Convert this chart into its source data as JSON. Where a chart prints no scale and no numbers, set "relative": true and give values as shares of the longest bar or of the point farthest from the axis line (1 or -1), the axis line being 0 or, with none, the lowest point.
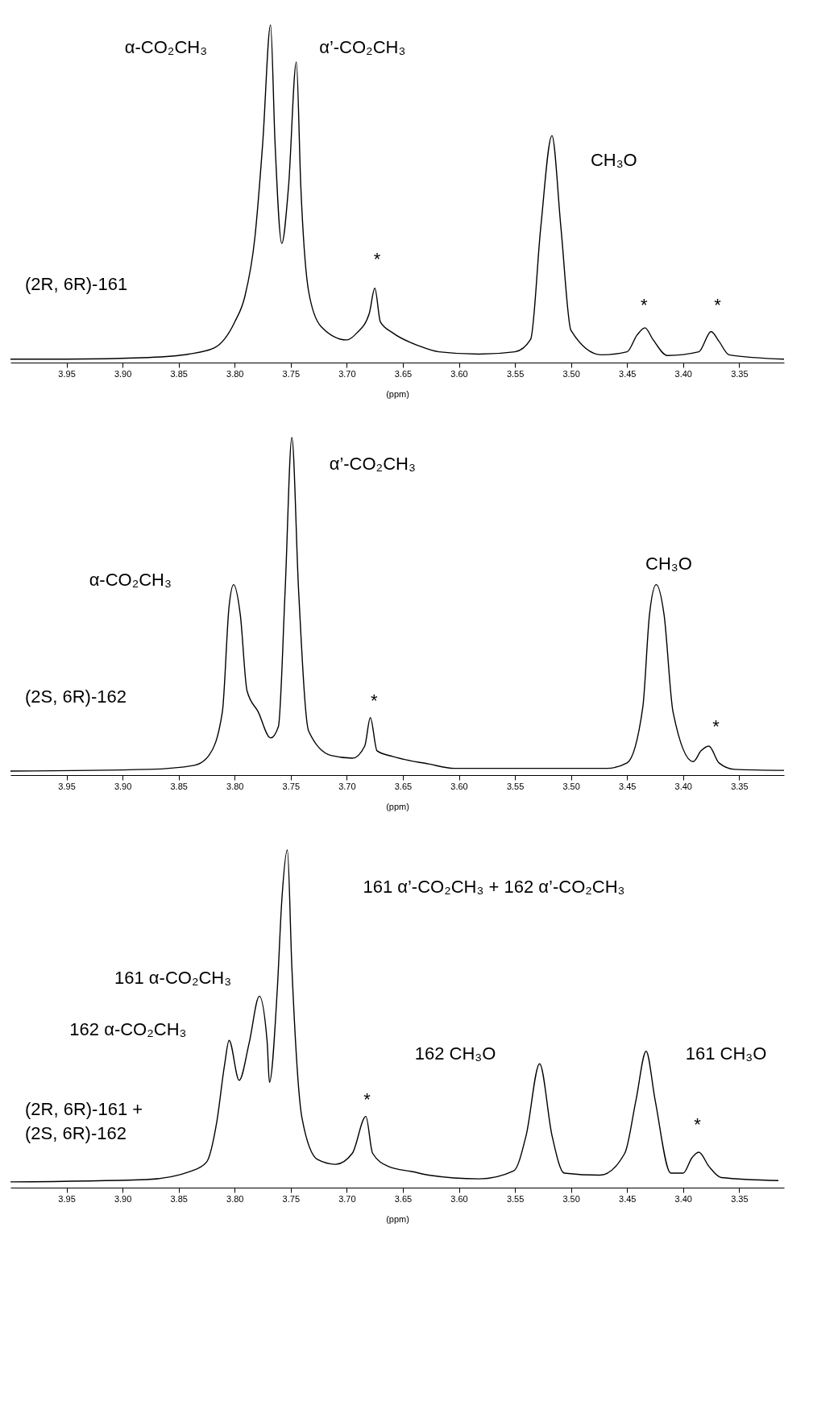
{
  "chart_data": [
    {
      "type": "line",
      "relative": true,
      "xlabel": "(ppm)",
      "xlim": [
        4.0,
        3.31
      ],
      "xticks": [
        3.95,
        {
          "value": 3.9,
          "label": "3.90"
        },
        3.85,
        {
          "value": 3.8,
          "label": "3.80"
        },
        3.75,
        {
          "value": 3.7,
          "label": "3.70"
        },
        3.65,
        {
          "value": 3.6,
          "label": "3.60"
        },
        3.55,
        {
          "value": 3.5,
          "label": "3.50"
        },
        3.45,
        {
          "value": 3.4,
          "label": "3.40"
        },
        3.35
      ],
      "grid": false,
      "legend": false,
      "marker": "none",
      "line_style": "solid",
      "series": [
        {
          "name": "(2R, 6R)-161",
          "color": "#000000",
          "x": [
            4.0,
            3.95,
            3.877,
            3.841,
            3.818,
            3.8,
            3.791,
            3.782,
            3.775,
            3.768,
            3.764,
            3.758,
            3.752,
            3.745,
            3.741,
            3.734,
            3.723,
            3.7,
            3.691,
            3.68,
            3.675,
            3.67,
            3.659,
            3.636,
            3.618,
            3.582,
            3.55,
            3.536,
            3.527,
            3.517,
            3.509,
            3.5,
            3.473,
            3.45,
            3.441,
            3.434,
            3.427,
            3.414,
            3.386,
            3.375,
            3.368,
            3.359,
            3.31
          ],
          "values": [
            0.01,
            0.01,
            0.015,
            0.025,
            0.044,
            0.12,
            0.195,
            0.37,
            0.65,
            1.0,
            0.65,
            0.353,
            0.52,
            0.89,
            0.52,
            0.21,
            0.107,
            0.067,
            0.088,
            0.145,
            0.22,
            0.12,
            0.088,
            0.05,
            0.032,
            0.025,
            0.032,
            0.069,
            0.4,
            0.672,
            0.4,
            0.095,
            0.023,
            0.032,
            0.082,
            0.103,
            0.069,
            0.021,
            0.032,
            0.092,
            0.063,
            0.023,
            0.01
          ]
        }
      ],
      "annotations": [
        "α-CO₂CH₃",
        "α’-CO₂CH₃",
        "CH₃O",
        "*",
        "*",
        "*"
      ]
    },
    {
      "type": "line",
      "relative": true,
      "xlabel": "(ppm)",
      "xlim": [
        4.0,
        3.31
      ],
      "xticks": [
        3.95,
        {
          "value": 3.9,
          "label": "3.90"
        },
        3.85,
        {
          "value": 3.8,
          "label": "3.80"
        },
        3.75,
        {
          "value": 3.7,
          "label": "3.70"
        },
        3.65,
        {
          "value": 3.6,
          "label": "3.60"
        },
        3.55,
        {
          "value": 3.5,
          "label": "3.50"
        },
        3.45,
        {
          "value": 3.4,
          "label": "3.40"
        },
        3.35
      ],
      "grid": false,
      "legend": false,
      "marker": "none",
      "line_style": "solid",
      "series": [
        {
          "name": "(2S, 6R)-162",
          "color": "#000000",
          "x": [
            4.0,
            3.877,
            3.836,
            3.823,
            3.811,
            3.805,
            3.801,
            3.795,
            3.789,
            3.779,
            3.768,
            3.761,
            3.755,
            3.749,
            3.743,
            3.734,
            3.714,
            3.695,
            3.684,
            3.679,
            3.673,
            3.659,
            3.627,
            3.604,
            3.468,
            3.45,
            3.436,
            3.43,
            3.424,
            3.417,
            3.409,
            3.391,
            3.384,
            3.377,
            3.368,
            3.354,
            3.31
          ],
          "values": [
            0.012,
            0.017,
            0.029,
            0.058,
            0.187,
            0.5,
            0.564,
            0.475,
            0.25,
            0.187,
            0.11,
            0.144,
            0.547,
            1.0,
            0.547,
            0.13,
            0.058,
            0.05,
            0.086,
            0.17,
            0.072,
            0.055,
            0.033,
            0.02,
            0.02,
            0.036,
            0.2,
            0.475,
            0.564,
            0.475,
            0.187,
            0.04,
            0.072,
            0.086,
            0.036,
            0.017,
            0.014
          ]
        }
      ],
      "annotations": [
        "α’-CO₂CH₃",
        "α-CO₂CH₃",
        "CH₃O",
        "*",
        "*"
      ]
    },
    {
      "type": "line",
      "relative": true,
      "xlabel": "(ppm)",
      "xlim": [
        4.0,
        3.31
      ],
      "xticks": [
        3.95,
        {
          "value": 3.9,
          "label": "3.90"
        },
        3.85,
        {
          "value": 3.8,
          "label": "3.80"
        },
        3.75,
        {
          "value": 3.7,
          "label": "3.70"
        },
        3.65,
        {
          "value": 3.6,
          "label": "3.60"
        },
        3.55,
        {
          "value": 3.5,
          "label": "3.50"
        },
        3.45,
        {
          "value": 3.4,
          "label": "3.40"
        },
        3.35
      ],
      "grid": false,
      "legend": false,
      "marker": "none",
      "line_style": "solid",
      "series": [
        {
          "name": "(2R, 6R)-161 +\n(2S, 6R)-162",
          "color": "#000000",
          "x": [
            4.0,
            3.879,
            3.838,
            3.825,
            3.816,
            3.809,
            3.805,
            3.796,
            3.787,
            3.778,
            3.771,
            3.769,
            3.762,
            3.758,
            3.753,
            3.749,
            3.74,
            3.726,
            3.71,
            3.695,
            3.683,
            3.677,
            3.663,
            3.641,
            3.627,
            3.582,
            3.551,
            3.54,
            3.528,
            3.517,
            3.506,
            3.474,
            3.452,
            3.442,
            3.433,
            3.425,
            3.411,
            3.4,
            3.392,
            3.386,
            3.377,
            3.366,
            3.315
          ],
          "values": [
            0.017,
            0.024,
            0.05,
            0.076,
            0.194,
            0.364,
            0.436,
            0.318,
            0.43,
            0.567,
            0.43,
            0.312,
            0.587,
            0.849,
            1.0,
            0.653,
            0.207,
            0.083,
            0.069,
            0.102,
            0.211,
            0.102,
            0.063,
            0.047,
            0.037,
            0.026,
            0.05,
            0.155,
            0.367,
            0.155,
            0.043,
            0.037,
            0.102,
            0.26,
            0.404,
            0.26,
            0.043,
            0.043,
            0.089,
            0.105,
            0.063,
            0.03,
            0.021
          ]
        }
      ],
      "annotations": [
        "161 α’-CO₂CH₃ + 162 α’-CO₂CH₃",
        "161 α-CO₂CH₃",
        "162 α-CO₂CH₃",
        "162 CH₃O",
        "161 CH₃O",
        "*",
        "*"
      ]
    }
  ]
}
